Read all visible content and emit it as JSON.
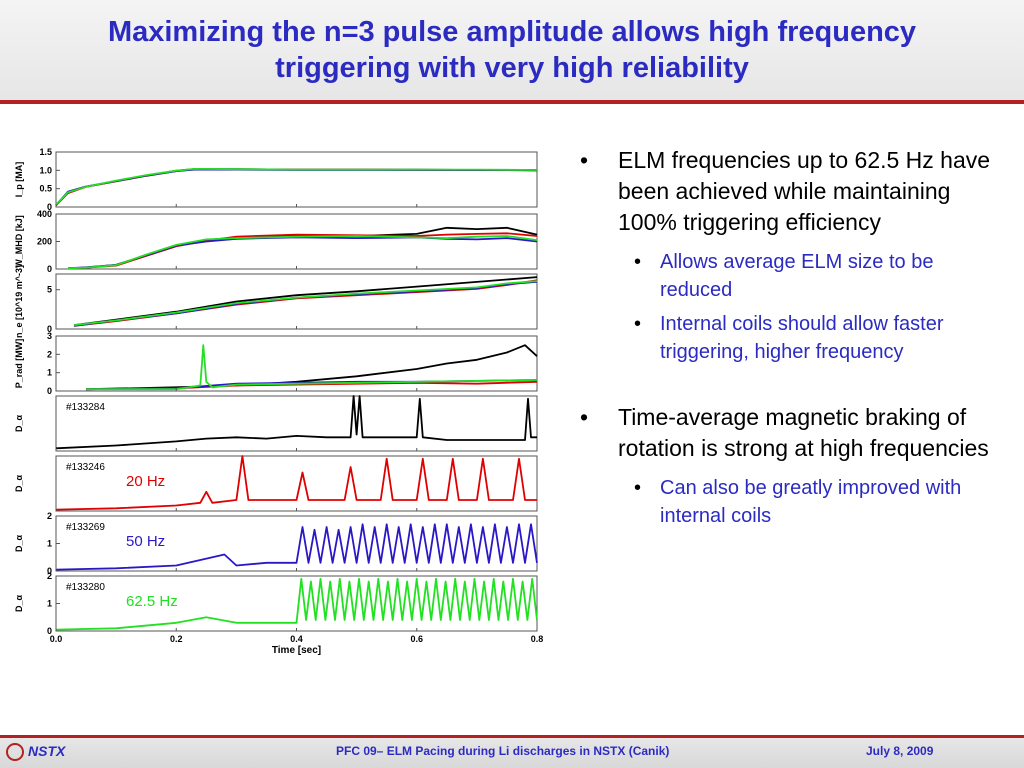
{
  "header": {
    "title_line1": "Maximizing the n=3 pulse amplitude allows high frequency",
    "title_line2": "triggering with very high reliability"
  },
  "bullets": {
    "b1": "ELM frequencies up to 62.5 Hz have been achieved while maintaining 100% triggering efficiency",
    "b1_sub1": "Allows average ELM size to be reduced",
    "b1_sub2": "Internal coils should allow faster triggering, higher frequency",
    "b2": "Time-average magnetic braking of rotation is strong at high frequencies",
    "b2_sub1": "Can also be greatly improved with internal coils"
  },
  "footer": {
    "logo": "NSTX",
    "text": "PFC 09– ELM Pacing during Li discharges in NSTX (Canik)",
    "date": "July 8, 2009"
  },
  "colors": {
    "title": "#2b2bc2",
    "rule": "#b22222"
  },
  "chart_data": {
    "type": "line",
    "xlabel": "Time [sec]",
    "xlim": [
      0,
      0.8
    ],
    "xticks": [
      "0.0",
      "0.2",
      "0.4",
      "0.6",
      "0.8"
    ],
    "series_colors": {
      "133284": "#000000",
      "133246": "#e00000",
      "133269": "#2a18c8",
      "133280": "#22e022"
    },
    "panels": [
      {
        "ylabel": "I_p [MA]",
        "ylim": [
          0,
          1.5
        ],
        "yticks": [
          "1.5",
          "1.0",
          "0.5",
          "0"
        ],
        "series": [
          {
            "shot": "133284",
            "x": [
              0,
              0.02,
              0.05,
              0.1,
              0.15,
              0.2,
              0.23,
              0.3,
              0.4,
              0.5,
              0.6,
              0.7,
              0.8
            ],
            "y": [
              0.05,
              0.4,
              0.55,
              0.7,
              0.85,
              0.98,
              1.03,
              1.03,
              1.02,
              1.02,
              1.02,
              1.01,
              1.0
            ]
          },
          {
            "shot": "133246",
            "x": [
              0,
              0.02,
              0.05,
              0.1,
              0.15,
              0.2,
              0.23,
              0.3,
              0.4,
              0.5,
              0.6,
              0.7,
              0.8
            ],
            "y": [
              0.05,
              0.38,
              0.55,
              0.7,
              0.86,
              0.99,
              1.03,
              1.02,
              1.02,
              1.02,
              1.01,
              1.01,
              1.0
            ]
          },
          {
            "shot": "133269",
            "x": [
              0,
              0.02,
              0.05,
              0.1,
              0.15,
              0.2,
              0.23,
              0.3,
              0.4,
              0.5,
              0.6,
              0.7,
              0.8
            ],
            "y": [
              0.05,
              0.42,
              0.56,
              0.71,
              0.86,
              0.98,
              1.02,
              1.02,
              1.01,
              1.01,
              1.01,
              1.01,
              1.01
            ]
          },
          {
            "shot": "133280",
            "x": [
              0,
              0.02,
              0.05,
              0.1,
              0.15,
              0.2,
              0.23,
              0.3,
              0.4,
              0.5,
              0.6,
              0.7,
              0.8
            ],
            "y": [
              0.06,
              0.4,
              0.55,
              0.72,
              0.87,
              0.99,
              1.04,
              1.03,
              1.02,
              1.02,
              1.02,
              1.02,
              1.01
            ]
          }
        ]
      },
      {
        "ylabel": "W_MHD [kJ]",
        "ylim": [
          0,
          400
        ],
        "yticks": [
          "400",
          "200",
          "0"
        ],
        "series": [
          {
            "shot": "133284",
            "x": [
              0.02,
              0.05,
              0.1,
              0.15,
              0.2,
              0.25,
              0.3,
              0.4,
              0.5,
              0.6,
              0.65,
              0.7,
              0.75,
              0.8
            ],
            "y": [
              5,
              10,
              30,
              100,
              170,
              210,
              230,
              245,
              240,
              255,
              300,
              290,
              300,
              250
            ]
          },
          {
            "shot": "133246",
            "x": [
              0.02,
              0.05,
              0.1,
              0.15,
              0.2,
              0.25,
              0.3,
              0.4,
              0.5,
              0.6,
              0.65,
              0.7,
              0.75,
              0.8
            ],
            "y": [
              5,
              10,
              25,
              95,
              165,
              205,
              235,
              250,
              245,
              240,
              250,
              255,
              260,
              240
            ]
          },
          {
            "shot": "133269",
            "x": [
              0.02,
              0.05,
              0.1,
              0.15,
              0.2,
              0.25,
              0.3,
              0.4,
              0.5,
              0.6,
              0.65,
              0.7,
              0.75,
              0.8
            ],
            "y": [
              5,
              12,
              30,
              100,
              170,
              200,
              220,
              230,
              225,
              230,
              220,
              215,
              225,
              200
            ]
          },
          {
            "shot": "133280",
            "x": [
              0.02,
              0.05,
              0.1,
              0.15,
              0.2,
              0.25,
              0.3,
              0.4,
              0.5,
              0.6,
              0.65,
              0.7,
              0.75,
              0.8
            ],
            "y": [
              5,
              10,
              28,
              105,
              175,
              215,
              225,
              235,
              240,
              230,
              225,
              235,
              240,
              210
            ]
          }
        ]
      },
      {
        "ylabel": "n_e [10^19 m^-3]",
        "ylim": [
          0,
          7
        ],
        "yticks": [
          "5",
          "0"
        ],
        "series": [
          {
            "shot": "133284",
            "x": [
              0.03,
              0.1,
              0.2,
              0.3,
              0.4,
              0.5,
              0.6,
              0.7,
              0.75,
              0.8
            ],
            "y": [
              0.5,
              1.2,
              2.2,
              3.5,
              4.3,
              4.8,
              5.4,
              6.0,
              6.3,
              6.6
            ]
          },
          {
            "shot": "133246",
            "x": [
              0.03,
              0.1,
              0.2,
              0.3,
              0.4,
              0.5,
              0.6,
              0.7,
              0.75,
              0.8
            ],
            "y": [
              0.4,
              1.0,
              2.0,
              3.1,
              3.9,
              4.3,
              4.7,
              5.1,
              5.6,
              6.2
            ]
          },
          {
            "shot": "133269",
            "x": [
              0.03,
              0.1,
              0.2,
              0.3,
              0.4,
              0.5,
              0.6,
              0.7,
              0.75,
              0.8
            ],
            "y": [
              0.4,
              1.1,
              2.0,
              3.2,
              4.0,
              4.4,
              4.8,
              5.2,
              5.7,
              6.0
            ]
          },
          {
            "shot": "133280",
            "x": [
              0.03,
              0.1,
              0.2,
              0.3,
              0.4,
              0.5,
              0.6,
              0.7,
              0.75,
              0.8
            ],
            "y": [
              0.5,
              1.1,
              2.1,
              3.3,
              4.0,
              4.5,
              4.9,
              5.3,
              5.8,
              6.1
            ]
          }
        ]
      },
      {
        "ylabel": "P_rad [MW]",
        "ylim": [
          0,
          3
        ],
        "yticks": [
          "3",
          "2",
          "1",
          "0"
        ],
        "series": [
          {
            "shot": "133284",
            "x": [
              0.05,
              0.2,
              0.3,
              0.4,
              0.5,
              0.6,
              0.65,
              0.7,
              0.75,
              0.78,
              0.8
            ],
            "y": [
              0.1,
              0.2,
              0.3,
              0.5,
              0.8,
              1.2,
              1.5,
              1.7,
              2.1,
              2.5,
              1.9
            ]
          },
          {
            "shot": "133246",
            "x": [
              0.05,
              0.2,
              0.3,
              0.4,
              0.5,
              0.6,
              0.7,
              0.8
            ],
            "y": [
              0.1,
              0.15,
              0.3,
              0.35,
              0.4,
              0.45,
              0.4,
              0.5
            ]
          },
          {
            "shot": "133269",
            "x": [
              0.05,
              0.2,
              0.3,
              0.4,
              0.5,
              0.6,
              0.7,
              0.8
            ],
            "y": [
              0.1,
              0.15,
              0.4,
              0.45,
              0.5,
              0.5,
              0.55,
              0.6
            ]
          },
          {
            "shot": "133280",
            "x": [
              0.05,
              0.2,
              0.24,
              0.245,
              0.25,
              0.26,
              0.3,
              0.4,
              0.5,
              0.6,
              0.7,
              0.8
            ],
            "y": [
              0.1,
              0.1,
              0.3,
              2.5,
              0.5,
              0.2,
              0.35,
              0.4,
              0.45,
              0.5,
              0.55,
              0.6
            ]
          }
        ]
      },
      {
        "ylabel": "D_α",
        "ylim": [
          0,
          2
        ],
        "yticks": [],
        "shot_label": "#133284",
        "series": [
          {
            "shot": "133284",
            "x": [
              0.0,
              0.1,
              0.2,
              0.25,
              0.3,
              0.35,
              0.4,
              0.45,
              0.49,
              0.495,
              0.5,
              0.505,
              0.51,
              0.55,
              0.6,
              0.605,
              0.61,
              0.65,
              0.7,
              0.78,
              0.785,
              0.79,
              0.8
            ],
            "y": [
              0.1,
              0.2,
              0.35,
              0.45,
              0.5,
              0.45,
              0.55,
              0.5,
              0.5,
              2.0,
              0.6,
              2.0,
              0.5,
              0.5,
              0.5,
              1.9,
              0.5,
              0.4,
              0.4,
              0.4,
              1.9,
              0.5,
              0.5
            ]
          }
        ]
      },
      {
        "ylabel": "D_α",
        "ylim": [
          0,
          2
        ],
        "yticks": [],
        "shot_label": "#133246",
        "freq_label": "20 Hz",
        "series": [
          {
            "shot": "133246",
            "x": [
              0.0,
              0.1,
              0.2,
              0.24,
              0.25,
              0.26,
              0.3,
              0.31,
              0.32,
              0.4,
              0.41,
              0.42,
              0.48,
              0.49,
              0.5,
              0.54,
              0.55,
              0.56,
              0.6,
              0.61,
              0.62,
              0.65,
              0.66,
              0.67,
              0.7,
              0.71,
              0.72,
              0.76,
              0.77,
              0.78,
              0.8
            ],
            "y": [
              0.05,
              0.1,
              0.2,
              0.3,
              0.7,
              0.3,
              0.4,
              2.0,
              0.4,
              0.4,
              1.4,
              0.4,
              0.4,
              1.6,
              0.4,
              0.4,
              1.9,
              0.4,
              0.4,
              1.9,
              0.4,
              0.4,
              1.9,
              0.4,
              0.4,
              1.9,
              0.4,
              0.4,
              1.9,
              0.4,
              0.4
            ]
          }
        ]
      },
      {
        "ylabel": "D_α",
        "ylim": [
          0,
          2
        ],
        "yticks": [
          "2",
          "1",
          "0"
        ],
        "shot_label": "#133269",
        "freq_label": "50 Hz",
        "series": [
          {
            "shot": "133269",
            "x": [
              0.0,
              0.1,
              0.2,
              0.28,
              0.3,
              0.35,
              0.4,
              0.41,
              0.42,
              0.43,
              0.44,
              0.45,
              0.46,
              0.47,
              0.48,
              0.49,
              0.5,
              0.51,
              0.52,
              0.53,
              0.54,
              0.55,
              0.56,
              0.57,
              0.58,
              0.59,
              0.6,
              0.61,
              0.62,
              0.63,
              0.64,
              0.65,
              0.66,
              0.67,
              0.68,
              0.69,
              0.7,
              0.71,
              0.72,
              0.73,
              0.74,
              0.75,
              0.76,
              0.77,
              0.78,
              0.79,
              0.8
            ],
            "y": [
              0.05,
              0.1,
              0.2,
              0.6,
              0.2,
              0.3,
              0.3,
              1.6,
              0.3,
              1.5,
              0.3,
              1.6,
              0.3,
              1.5,
              0.3,
              1.6,
              0.3,
              1.7,
              0.3,
              1.6,
              0.3,
              1.7,
              0.3,
              1.6,
              0.3,
              1.7,
              0.3,
              1.6,
              0.3,
              1.7,
              0.3,
              1.7,
              0.3,
              1.6,
              0.3,
              1.7,
              0.3,
              1.6,
              0.3,
              1.7,
              0.3,
              1.6,
              0.3,
              1.7,
              0.3,
              1.7,
              0.3
            ]
          }
        ]
      },
      {
        "ylabel": "D_α",
        "ylim": [
          0,
          2
        ],
        "yticks": [
          "2",
          "1",
          "0"
        ],
        "shot_label": "#133280",
        "freq_label": "62.5 Hz",
        "series": [
          {
            "shot": "133280",
            "x": [
              0.0,
              0.1,
              0.2,
              0.25,
              0.3,
              0.4,
              0.408,
              0.416,
              0.424,
              0.432,
              0.44,
              0.448,
              0.456,
              0.464,
              0.472,
              0.48,
              0.488,
              0.496,
              0.504,
              0.512,
              0.52,
              0.528,
              0.536,
              0.544,
              0.552,
              0.56,
              0.568,
              0.576,
              0.584,
              0.592,
              0.6,
              0.608,
              0.616,
              0.624,
              0.632,
              0.64,
              0.648,
              0.656,
              0.664,
              0.672,
              0.68,
              0.688,
              0.696,
              0.704,
              0.712,
              0.72,
              0.728,
              0.736,
              0.744,
              0.752,
              0.76,
              0.768,
              0.776,
              0.784,
              0.792,
              0.8
            ],
            "y": [
              0.05,
              0.1,
              0.3,
              0.5,
              0.3,
              0.3,
              1.9,
              0.4,
              1.8,
              0.4,
              1.9,
              0.4,
              1.8,
              0.4,
              1.9,
              0.4,
              1.8,
              0.4,
              1.9,
              0.4,
              1.8,
              0.4,
              1.9,
              0.4,
              1.8,
              0.4,
              1.9,
              0.4,
              1.8,
              0.4,
              1.9,
              0.4,
              1.8,
              0.4,
              1.9,
              0.4,
              1.8,
              0.4,
              1.9,
              0.4,
              1.8,
              0.4,
              1.9,
              0.4,
              1.8,
              0.4,
              1.9,
              0.4,
              1.8,
              0.4,
              1.9,
              0.4,
              1.8,
              0.4,
              1.9,
              0.4
            ]
          }
        ]
      }
    ]
  }
}
